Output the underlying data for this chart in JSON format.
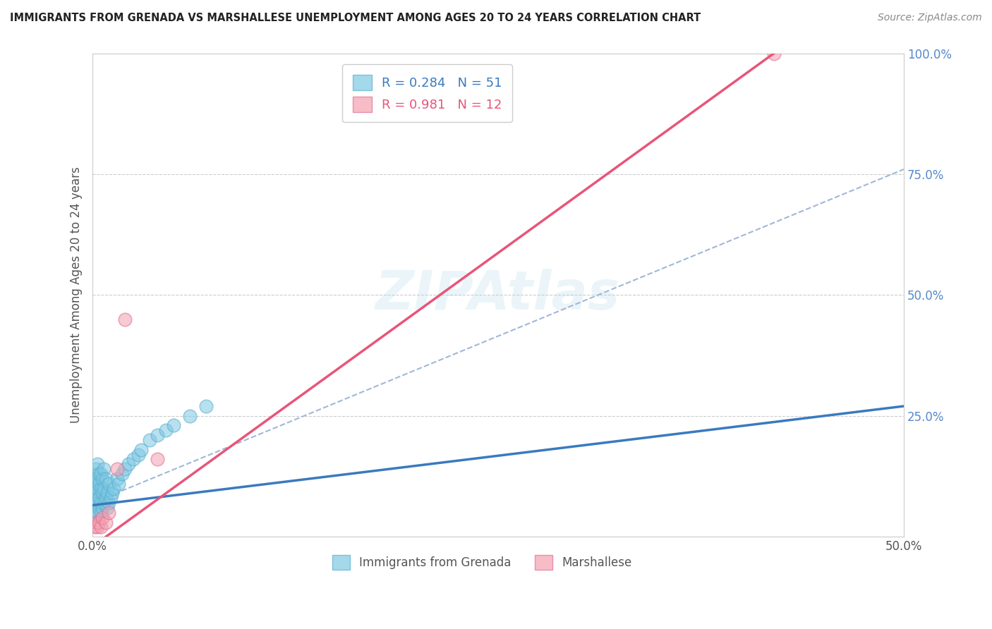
{
  "title": "IMMIGRANTS FROM GRENADA VS MARSHALLESE UNEMPLOYMENT AMONG AGES 20 TO 24 YEARS CORRELATION CHART",
  "source": "Source: ZipAtlas.com",
  "ylabel": "Unemployment Among Ages 20 to 24 years",
  "xlim": [
    0.0,
    0.5
  ],
  "ylim": [
    0.0,
    1.0
  ],
  "xticks": [
    0.0,
    0.05,
    0.1,
    0.15,
    0.2,
    0.25,
    0.3,
    0.35,
    0.4,
    0.45,
    0.5
  ],
  "xticklabels": [
    "0.0%",
    "",
    "",
    "",
    "",
    "",
    "",
    "",
    "",
    "",
    "50.0%"
  ],
  "ytick_positions": [
    0.0,
    0.25,
    0.5,
    0.75,
    1.0
  ],
  "yticklabels": [
    "",
    "25.0%",
    "50.0%",
    "75.0%",
    "100.0%"
  ],
  "legend_r1": "R = 0.284",
  "legend_n1": "N = 51",
  "legend_r2": "R = 0.981",
  "legend_n2": "N = 12",
  "blue_color": "#7ec8e3",
  "blue_edge_color": "#5ab0d0",
  "pink_color": "#f4a0b0",
  "pink_edge_color": "#e07090",
  "blue_line_color": "#3a7abf",
  "pink_line_color": "#e8557a",
  "dashed_line_color": "#a0b8d8",
  "background_color": "#ffffff",
  "grid_color": "#cccccc",
  "ytick_color": "#5588cc",
  "xtick_color": "#555555",
  "ylabel_color": "#555555",
  "blue_scatter_x": [
    0.001,
    0.001,
    0.001,
    0.001,
    0.002,
    0.002,
    0.002,
    0.002,
    0.002,
    0.003,
    0.003,
    0.003,
    0.003,
    0.003,
    0.004,
    0.004,
    0.004,
    0.004,
    0.005,
    0.005,
    0.005,
    0.005,
    0.006,
    0.006,
    0.006,
    0.007,
    0.007,
    0.007,
    0.008,
    0.008,
    0.009,
    0.009,
    0.01,
    0.01,
    0.011,
    0.012,
    0.013,
    0.015,
    0.016,
    0.018,
    0.02,
    0.022,
    0.025,
    0.028,
    0.03,
    0.035,
    0.04,
    0.045,
    0.05,
    0.06,
    0.07
  ],
  "blue_scatter_y": [
    0.05,
    0.08,
    0.1,
    0.12,
    0.05,
    0.07,
    0.09,
    0.11,
    0.14,
    0.05,
    0.07,
    0.1,
    0.12,
    0.15,
    0.06,
    0.08,
    0.11,
    0.13,
    0.05,
    0.07,
    0.1,
    0.13,
    0.06,
    0.09,
    0.12,
    0.07,
    0.1,
    0.14,
    0.08,
    0.12,
    0.06,
    0.09,
    0.07,
    0.11,
    0.08,
    0.09,
    0.1,
    0.12,
    0.11,
    0.13,
    0.14,
    0.15,
    0.16,
    0.17,
    0.18,
    0.2,
    0.21,
    0.22,
    0.23,
    0.25,
    0.27
  ],
  "pink_scatter_x": [
    0.001,
    0.002,
    0.003,
    0.004,
    0.005,
    0.006,
    0.008,
    0.01,
    0.015,
    0.02,
    0.04,
    0.42
  ],
  "pink_scatter_y": [
    0.02,
    0.03,
    0.02,
    0.03,
    0.02,
    0.04,
    0.03,
    0.05,
    0.14,
    0.45,
    0.16,
    1.0
  ],
  "blue_line_x0": 0.0,
  "blue_line_y0": 0.065,
  "blue_line_x1": 0.5,
  "blue_line_y1": 0.27,
  "pink_line_x0": 0.0,
  "pink_line_y0": -0.02,
  "pink_line_x1": 0.42,
  "pink_line_y1": 1.0,
  "dash_line_x0": 0.0,
  "dash_line_y0": 0.07,
  "dash_line_x1": 0.5,
  "dash_line_y1": 0.76
}
